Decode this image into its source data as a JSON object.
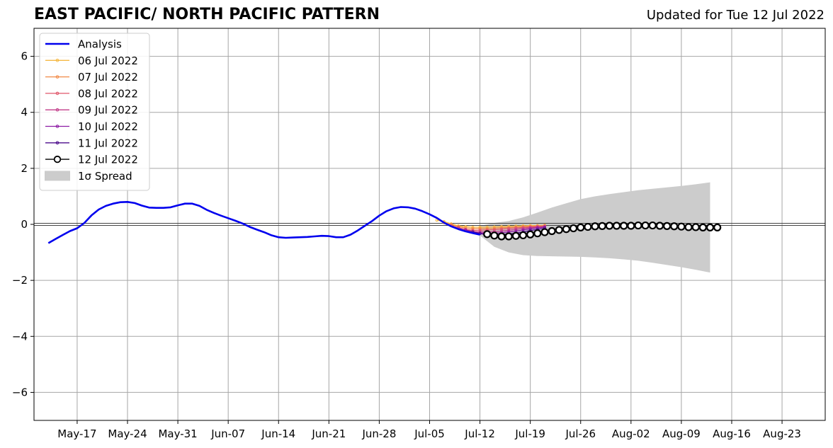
{
  "title": "EAST PACIFIC/ NORTH PACIFIC PATTERN",
  "subtitle": "Updated for Tue 12 Jul 2022",
  "chart_data": {
    "type": "line",
    "title": "EAST PACIFIC/ NORTH PACIFIC PATTERN",
    "subtitle": "Updated for Tue 12 Jul 2022",
    "xlabel": "",
    "ylabel": "",
    "xlim": [
      "2022-05-11",
      "2022-08-29"
    ],
    "ylim": [
      -7,
      7
    ],
    "grid": true,
    "legend_position": "top-left",
    "x_tick_labels": [
      "May-17",
      "May-24",
      "May-31",
      "Jun-07",
      "Jun-14",
      "Jun-21",
      "Jun-28",
      "Jul-05",
      "Jul-12",
      "Jul-19",
      "Jul-26",
      "Aug-02",
      "Aug-09",
      "Aug-16",
      "Aug-23"
    ],
    "x_ticks": [
      "2022-05-17",
      "2022-05-24",
      "2022-05-31",
      "2022-06-07",
      "2022-06-14",
      "2022-06-21",
      "2022-06-28",
      "2022-07-05",
      "2022-07-12",
      "2022-07-19",
      "2022-07-26",
      "2022-08-02",
      "2022-08-09",
      "2022-08-16",
      "2022-08-23"
    ],
    "y_ticks": [
      -6,
      -4,
      -2,
      0,
      2,
      4,
      6
    ],
    "y_tick_labels": [
      "−6",
      "−4",
      "−2",
      "0",
      "2",
      "4",
      "6"
    ],
    "analysis": {
      "name": "Analysis",
      "color": "#0000ee",
      "points": [
        [
          "2022-05-13",
          -0.67
        ],
        [
          "2022-05-14",
          -0.52
        ],
        [
          "2022-05-15",
          -0.38
        ],
        [
          "2022-05-16",
          -0.24
        ],
        [
          "2022-05-17",
          -0.14
        ],
        [
          "2022-05-18",
          0.05
        ],
        [
          "2022-05-19",
          0.32
        ],
        [
          "2022-05-20",
          0.53
        ],
        [
          "2022-05-21",
          0.66
        ],
        [
          "2022-05-22",
          0.74
        ],
        [
          "2022-05-23",
          0.79
        ],
        [
          "2022-05-24",
          0.8
        ],
        [
          "2022-05-25",
          0.76
        ],
        [
          "2022-05-26",
          0.67
        ],
        [
          "2022-05-27",
          0.6
        ],
        [
          "2022-05-28",
          0.59
        ],
        [
          "2022-05-29",
          0.59
        ],
        [
          "2022-05-30",
          0.61
        ],
        [
          "2022-05-31",
          0.68
        ],
        [
          "2022-06-01",
          0.74
        ],
        [
          "2022-06-02",
          0.74
        ],
        [
          "2022-06-03",
          0.66
        ],
        [
          "2022-06-04",
          0.52
        ],
        [
          "2022-06-05",
          0.41
        ],
        [
          "2022-06-06",
          0.31
        ],
        [
          "2022-06-07",
          0.22
        ],
        [
          "2022-06-08",
          0.13
        ],
        [
          "2022-06-09",
          0.03
        ],
        [
          "2022-06-10",
          -0.09
        ],
        [
          "2022-06-11",
          -0.19
        ],
        [
          "2022-06-12",
          -0.28
        ],
        [
          "2022-06-13",
          -0.39
        ],
        [
          "2022-06-14",
          -0.46
        ],
        [
          "2022-06-15",
          -0.48
        ],
        [
          "2022-06-16",
          -0.47
        ],
        [
          "2022-06-17",
          -0.46
        ],
        [
          "2022-06-18",
          -0.45
        ],
        [
          "2022-06-19",
          -0.43
        ],
        [
          "2022-06-20",
          -0.41
        ],
        [
          "2022-06-21",
          -0.42
        ],
        [
          "2022-06-22",
          -0.46
        ],
        [
          "2022-06-23",
          -0.46
        ],
        [
          "2022-06-24",
          -0.37
        ],
        [
          "2022-06-25",
          -0.22
        ],
        [
          "2022-06-26",
          -0.05
        ],
        [
          "2022-06-27",
          0.12
        ],
        [
          "2022-06-28",
          0.31
        ],
        [
          "2022-06-29",
          0.47
        ],
        [
          "2022-06-30",
          0.57
        ],
        [
          "2022-07-01",
          0.62
        ],
        [
          "2022-07-02",
          0.61
        ],
        [
          "2022-07-03",
          0.56
        ],
        [
          "2022-07-04",
          0.47
        ],
        [
          "2022-07-05",
          0.36
        ],
        [
          "2022-07-06",
          0.23
        ],
        [
          "2022-07-07",
          0.06
        ],
        [
          "2022-07-08",
          -0.07
        ],
        [
          "2022-07-09",
          -0.17
        ],
        [
          "2022-07-10",
          -0.25
        ],
        [
          "2022-07-11",
          -0.31
        ],
        [
          "2022-07-12",
          -0.37
        ]
      ]
    },
    "forecasts": [
      {
        "name": "06 Jul 2022",
        "color": "#f5b944",
        "start": "2022-07-06",
        "values": [
          0.15,
          0.1,
          0.02,
          -0.05,
          -0.08,
          -0.1,
          -0.1,
          -0.1,
          -0.09,
          -0.08,
          -0.07,
          -0.06,
          -0.05,
          -0.04,
          -0.04,
          -0.03
        ]
      },
      {
        "name": "07 Jul 2022",
        "color": "#f28a47",
        "start": "2022-07-07",
        "values": [
          0.06,
          0.0,
          -0.08,
          -0.13,
          -0.15,
          -0.15,
          -0.15,
          -0.14,
          -0.12,
          -0.11,
          -0.1,
          -0.08,
          -0.07,
          -0.06,
          -0.05
        ]
      },
      {
        "name": "08 Jul 2022",
        "color": "#e0566a",
        "start": "2022-07-08",
        "values": [
          -0.04,
          -0.12,
          -0.18,
          -0.21,
          -0.21,
          -0.2,
          -0.19,
          -0.17,
          -0.15,
          -0.13,
          -0.11,
          -0.09,
          -0.07,
          -0.06
        ]
      },
      {
        "name": "09 Jul 2022",
        "color": "#c23c8a",
        "start": "2022-07-09",
        "values": [
          -0.12,
          -0.2,
          -0.25,
          -0.27,
          -0.27,
          -0.26,
          -0.24,
          -0.21,
          -0.18,
          -0.15,
          -0.12,
          -0.1,
          -0.08
        ]
      },
      {
        "name": "10 Jul 2022",
        "color": "#8d1aa4",
        "start": "2022-07-10",
        "values": [
          -0.2,
          -0.27,
          -0.31,
          -0.32,
          -0.32,
          -0.3,
          -0.27,
          -0.24,
          -0.2,
          -0.16,
          -0.13,
          -0.1
        ]
      },
      {
        "name": "11 Jul 2022",
        "color": "#4c0c8c",
        "start": "2022-07-11",
        "values": [
          -0.27,
          -0.33,
          -0.37,
          -0.37,
          -0.36,
          -0.34,
          -0.31,
          -0.27,
          -0.22,
          -0.18,
          -0.14
        ]
      },
      {
        "name": "12 Jul 2022",
        "color": "#000000",
        "start": "2022-07-13",
        "values": [
          -0.35,
          -0.4,
          -0.43,
          -0.43,
          -0.41,
          -0.39,
          -0.36,
          -0.32,
          -0.28,
          -0.24,
          -0.2,
          -0.17,
          -0.14,
          -0.11,
          -0.09,
          -0.07,
          -0.06,
          -0.05,
          -0.05,
          -0.05,
          -0.05,
          -0.04,
          -0.04,
          -0.04,
          -0.05,
          -0.06,
          -0.07,
          -0.08,
          -0.1,
          -0.1,
          -0.11,
          -0.11,
          -0.11
        ]
      }
    ],
    "spread": {
      "name": "1σ Spread",
      "color": "#cccccc",
      "points": [
        [
          "2022-07-12",
          -0.4,
          -0.05
        ],
        [
          "2022-07-14",
          -0.8,
          0.05
        ],
        [
          "2022-07-16",
          -1.0,
          0.12
        ],
        [
          "2022-07-18",
          -1.1,
          0.25
        ],
        [
          "2022-07-20",
          -1.13,
          0.42
        ],
        [
          "2022-07-22",
          -1.14,
          0.6
        ],
        [
          "2022-07-24",
          -1.15,
          0.75
        ],
        [
          "2022-07-26",
          -1.16,
          0.9
        ],
        [
          "2022-07-28",
          -1.18,
          1.0
        ],
        [
          "2022-07-30",
          -1.21,
          1.08
        ],
        [
          "2022-08-01",
          -1.25,
          1.15
        ],
        [
          "2022-08-03",
          -1.3,
          1.22
        ],
        [
          "2022-08-05",
          -1.37,
          1.27
        ],
        [
          "2022-08-07",
          -1.45,
          1.32
        ],
        [
          "2022-08-09",
          -1.53,
          1.37
        ],
        [
          "2022-08-11",
          -1.62,
          1.43
        ],
        [
          "2022-08-13",
          -1.72,
          1.5
        ]
      ]
    },
    "legend": [
      "Analysis",
      "06 Jul 2022",
      "07 Jul 2022",
      "08 Jul 2022",
      "09 Jul 2022",
      "10 Jul 2022",
      "11 Jul 2022",
      "12 Jul 2022",
      "1σ Spread"
    ]
  }
}
